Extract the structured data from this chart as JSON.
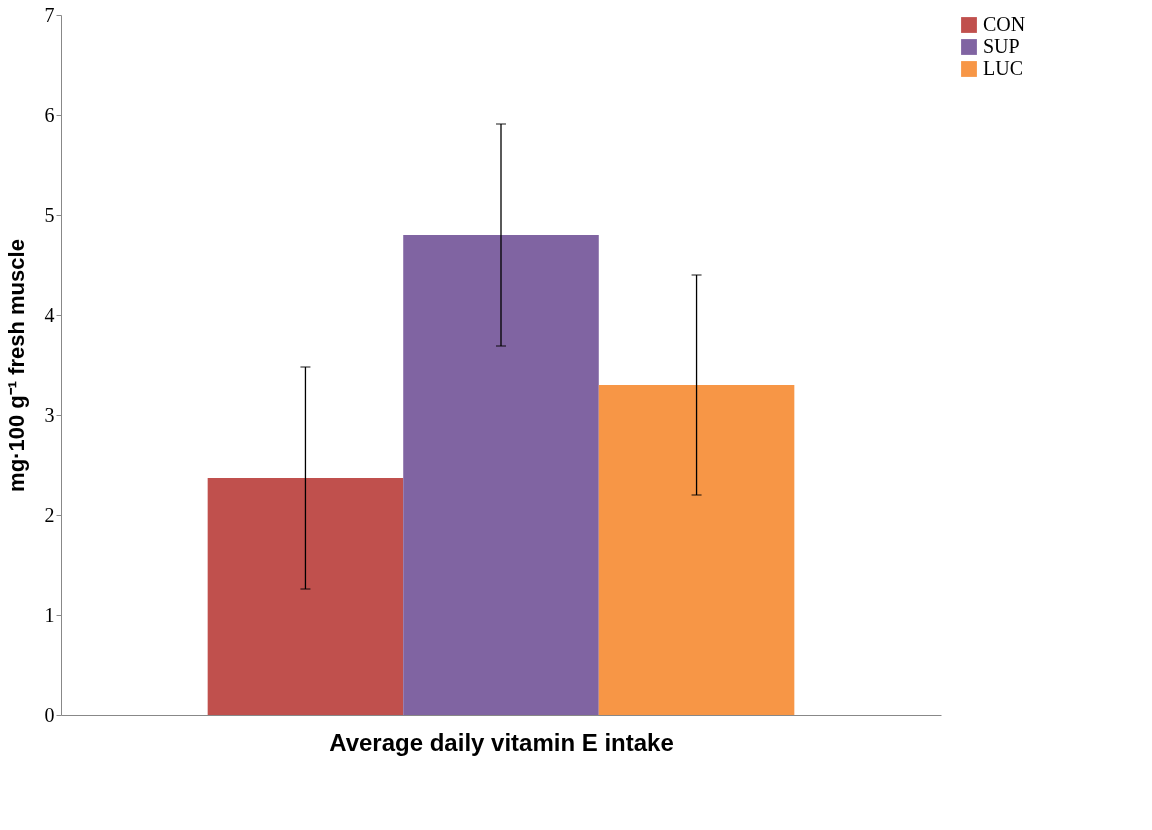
{
  "chart_data": {
    "type": "bar",
    "xlabel": "Average daily vitamin E intake",
    "ylabel": "mg·100 g⁻¹ fresh muscle",
    "categories": [
      null
    ],
    "series": [
      {
        "name": "CON",
        "color": "#c0504d",
        "values": [
          2.37
        ],
        "errors": [
          1.11
        ]
      },
      {
        "name": "SUP",
        "color": "#8064a2",
        "values": [
          4.8
        ],
        "errors": [
          1.11
        ]
      },
      {
        "name": "LUC",
        "color": "#f79646",
        "values": [
          3.3
        ],
        "errors": [
          1.1
        ]
      }
    ],
    "ylim": [
      0,
      7
    ],
    "yticks": [
      0,
      1,
      2,
      3,
      4,
      5,
      6,
      7
    ],
    "grid": false,
    "legend": "right"
  }
}
